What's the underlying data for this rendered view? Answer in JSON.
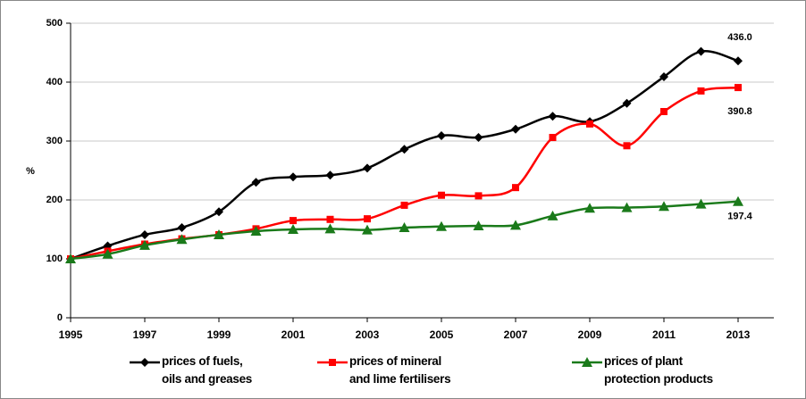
{
  "chart_data": {
    "type": "line",
    "ylabel": "%",
    "x": [
      1995,
      1996,
      1997,
      1998,
      1999,
      2000,
      2001,
      2002,
      2003,
      2004,
      2005,
      2006,
      2007,
      2008,
      2009,
      2010,
      2011,
      2012,
      2013
    ],
    "xlim": [
      1995,
      2013
    ],
    "xticks": [
      1995,
      1997,
      1999,
      2001,
      2003,
      2005,
      2007,
      2009,
      2011,
      2013
    ],
    "ylim": [
      0,
      500
    ],
    "yticks": [
      0,
      100,
      200,
      300,
      400,
      500
    ],
    "grid": true,
    "legend": "bottom",
    "series": [
      {
        "name": "prices of fuels,\noils and greases",
        "color": "#000000",
        "marker": "diamond",
        "values": [
          100,
          122,
          141,
          153,
          180,
          230,
          239,
          242,
          254,
          286,
          309,
          306,
          320,
          342,
          333,
          364,
          409,
          452,
          436.0
        ],
        "value_labels": [
          null,
          null,
          null,
          null,
          null,
          null,
          null,
          null,
          null,
          null,
          null,
          null,
          null,
          null,
          null,
          null,
          null,
          null,
          "436.0"
        ]
      },
      {
        "name": "prices of mineral\nand lime fertilisers",
        "color": "#ff0000",
        "marker": "square",
        "values": [
          100,
          113,
          125,
          134,
          141,
          151,
          165,
          167,
          168,
          191,
          208,
          207,
          221,
          306,
          329,
          292,
          350,
          385,
          390.8
        ],
        "value_labels": [
          null,
          null,
          null,
          null,
          null,
          null,
          null,
          null,
          null,
          null,
          null,
          null,
          null,
          null,
          null,
          null,
          null,
          null,
          "390.8"
        ]
      },
      {
        "name": "prices of plant\nprotection products",
        "color": "#1a7a1a",
        "marker": "triangle",
        "values": [
          100,
          108,
          123,
          133,
          141,
          147,
          150,
          151,
          149,
          153,
          155,
          156,
          157,
          173,
          186,
          187,
          189,
          193,
          197.4
        ],
        "value_labels": [
          null,
          null,
          null,
          null,
          null,
          null,
          null,
          null,
          null,
          null,
          null,
          null,
          null,
          null,
          null,
          null,
          null,
          null,
          "197.4"
        ]
      }
    ]
  }
}
